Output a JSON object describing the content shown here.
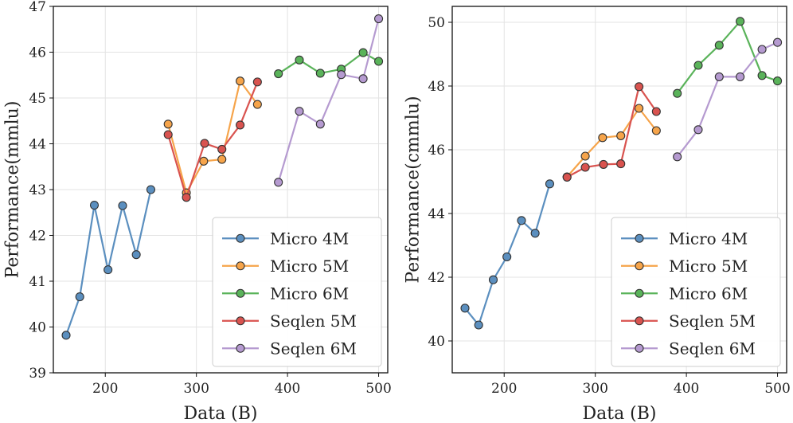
{
  "chart_data": [
    {
      "type": "line",
      "xlabel": "Data (B)",
      "ylabel": "Performance(mmlu)",
      "xlim": [
        143,
        510
      ],
      "ylim": [
        39,
        47
      ],
      "xticks": [
        200,
        300,
        400,
        500
      ],
      "yticks": [
        39,
        40,
        41,
        42,
        43,
        44,
        45,
        46,
        47
      ],
      "xtick_labels": [
        "200",
        "300",
        "400",
        "500"
      ],
      "ytick_labels": [
        "39",
        "40",
        "41",
        "42",
        "43",
        "44",
        "45",
        "46",
        "47"
      ],
      "grid": true,
      "legend_position": "bottom-right",
      "series": [
        {
          "name": "Micro 4M",
          "color": "#5b8fbf",
          "x": [
            157,
            172,
            188,
            203,
            219,
            234,
            250
          ],
          "y": [
            39.82,
            40.66,
            42.66,
            41.25,
            42.65,
            41.58,
            43.0
          ]
        },
        {
          "name": "Micro 5M",
          "color": "#f6a44a",
          "x": [
            269,
            289,
            308,
            328,
            348,
            367
          ],
          "y": [
            44.43,
            42.93,
            43.62,
            43.66,
            45.37,
            44.86
          ]
        },
        {
          "name": "Micro 6M",
          "color": "#5ab35a",
          "x": [
            390,
            413,
            436,
            459,
            483,
            500
          ],
          "y": [
            45.53,
            45.83,
            45.54,
            45.63,
            45.99,
            45.8
          ]
        },
        {
          "name": "Seqlen 5M",
          "color": "#d9534f",
          "x": [
            269,
            289,
            309,
            328,
            348,
            367
          ],
          "y": [
            44.2,
            42.83,
            44.01,
            43.88,
            44.41,
            45.35
          ]
        },
        {
          "name": "Seqlen 6M",
          "color": "#b59ad0",
          "x": [
            390,
            413,
            436,
            459,
            483,
            500
          ],
          "y": [
            43.16,
            44.71,
            44.43,
            45.51,
            45.42,
            46.73
          ]
        }
      ]
    },
    {
      "type": "line",
      "xlabel": "Data (B)",
      "ylabel": "Performance(cmmlu)",
      "xlim": [
        143,
        510
      ],
      "ylim": [
        39,
        50.5
      ],
      "xticks": [
        200,
        300,
        400,
        500
      ],
      "yticks": [
        40,
        42,
        44,
        46,
        48,
        50
      ],
      "xtick_labels": [
        "200",
        "300",
        "400",
        "500"
      ],
      "ytick_labels": [
        "40",
        "42",
        "44",
        "46",
        "48",
        "50"
      ],
      "grid": true,
      "legend_position": "bottom-right",
      "series": [
        {
          "name": "Micro 4M",
          "color": "#5b8fbf",
          "x": [
            157,
            172,
            188,
            203,
            219,
            234,
            250
          ],
          "y": [
            41.03,
            40.5,
            41.92,
            42.64,
            43.78,
            43.38,
            44.93
          ]
        },
        {
          "name": "Micro 5M",
          "color": "#f6a44a",
          "x": [
            269,
            289,
            308,
            328,
            348,
            367
          ],
          "y": [
            45.15,
            45.8,
            46.38,
            46.44,
            47.3,
            46.6
          ]
        },
        {
          "name": "Micro 6M",
          "color": "#5ab35a",
          "x": [
            390,
            413,
            436,
            459,
            483,
            500
          ],
          "y": [
            47.77,
            48.65,
            49.28,
            50.03,
            48.33,
            48.16
          ]
        },
        {
          "name": "Seqlen 5M",
          "color": "#d9534f",
          "x": [
            269,
            289,
            309,
            328,
            348,
            367
          ],
          "y": [
            45.14,
            45.45,
            45.54,
            45.56,
            47.98,
            47.2
          ]
        },
        {
          "name": "Seqlen 6M",
          "color": "#b59ad0",
          "x": [
            390,
            413,
            436,
            459,
            483,
            500
          ],
          "y": [
            45.78,
            46.63,
            48.29,
            48.29,
            49.15,
            49.37
          ]
        }
      ]
    }
  ]
}
